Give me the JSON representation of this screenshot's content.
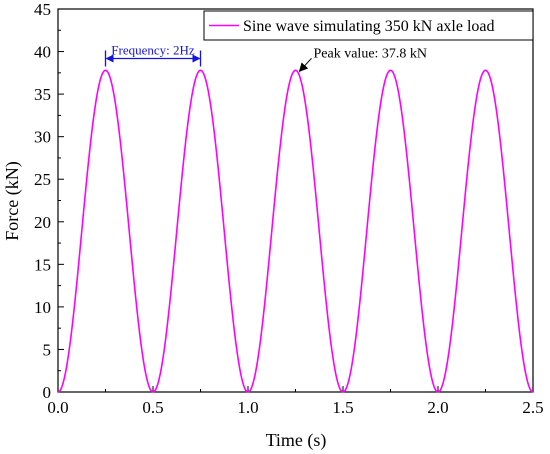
{
  "chart_data": {
    "type": "line",
    "title": "",
    "xlabel": "Time (s)",
    "ylabel": "Force (kN)",
    "xlim": [
      0.0,
      2.5
    ],
    "ylim": [
      0,
      45
    ],
    "x_ticks": [
      0.0,
      0.5,
      1.0,
      1.5,
      2.0,
      2.5
    ],
    "x_tick_labels": [
      "0.0",
      "0.5",
      "1.0",
      "1.5",
      "2.0",
      "2.5"
    ],
    "y_ticks": [
      0,
      5,
      10,
      15,
      20,
      25,
      30,
      35,
      40,
      45
    ],
    "y_tick_labels": [
      "0",
      "5",
      "10",
      "15",
      "20",
      "25",
      "30",
      "35",
      "40",
      "45"
    ],
    "grid": false,
    "legend_position": "top-right",
    "series": [
      {
        "name": "Sine wave simulating 350 kN axle load",
        "color": "#ff00ff",
        "function": "y = 18.9 * (1 - cos(2*pi*2*t))",
        "amplitude_peak": 37.8,
        "frequency_hz": 2,
        "x": [
          0.0,
          0.25,
          0.5,
          0.75,
          1.0,
          1.25,
          1.5,
          1.75,
          2.0,
          2.25,
          2.5
        ],
        "y": [
          0,
          37.8,
          0,
          37.8,
          0,
          37.8,
          0,
          37.8,
          0,
          37.8,
          0
        ]
      }
    ],
    "annotations": [
      {
        "text": "Frequency: 2Hz",
        "type": "double-arrow",
        "x_start": 0.25,
        "x_end": 0.75,
        "y": 39.3,
        "color": "#1414dc"
      },
      {
        "text": "Peak value: 37.8 kN",
        "type": "arrow",
        "x": 1.25,
        "y": 37.8
      }
    ]
  }
}
